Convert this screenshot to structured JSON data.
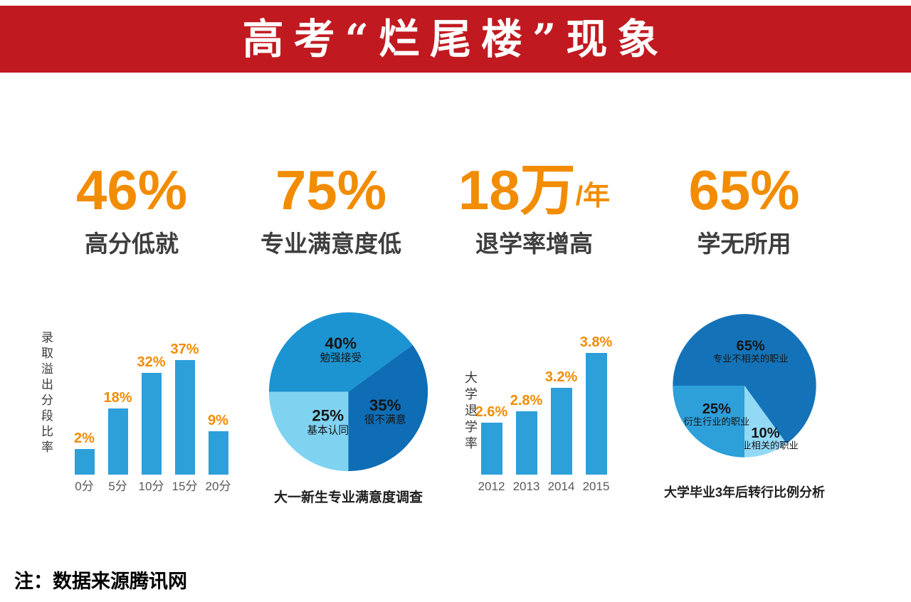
{
  "header": {
    "title": "高考“烂尾楼”现象"
  },
  "colors": {
    "banner_red": "#C11920",
    "accent_orange": "#F28C00",
    "bar_blue": "#2D9FD9",
    "pie_dark_blue": "#0E6DB5",
    "pie_mid_blue": "#1D94D2",
    "pie_light_blue": "#7FD3F1",
    "label_gray": "#3E3E3E"
  },
  "stats": [
    {
      "value": "46%",
      "suffix": "",
      "label": "高分低就"
    },
    {
      "value": "75%",
      "suffix": "",
      "label": "专业满意度低"
    },
    {
      "value": "18万",
      "suffix": "/年",
      "label": "退学率增高"
    },
    {
      "value": "65%",
      "suffix": "",
      "label": "学无所用"
    }
  ],
  "chart_data": [
    {
      "type": "bar",
      "ylabel": "录取溢出分段比率",
      "categories": [
        "0分",
        "5分",
        "10分",
        "15分",
        "20分"
      ],
      "values": [
        2,
        18,
        32,
        37,
        9
      ],
      "value_labels": [
        "2%",
        "18%",
        "32%",
        "37%",
        "9%"
      ],
      "ylim": [
        -8,
        38
      ],
      "grid": false,
      "bar_color": "#2D9FD9",
      "value_label_color": "#F28C00"
    },
    {
      "type": "pie",
      "title": "大一新生专业满意度调查",
      "start_angle": 270,
      "legend": "labels-inside",
      "slices": [
        {
          "name": "勉强接受",
          "value": 40,
          "display": "40%",
          "color": "#1D94D2",
          "label_angle": 350,
          "label_r": 0.55
        },
        {
          "name": "很不满意",
          "value": 35,
          "display": "35%",
          "color": "#0E6DB5",
          "label_r": 0.52
        },
        {
          "name": "基本认同",
          "value": 25,
          "display": "25%",
          "color": "#7FD3F1",
          "label_angle": 215,
          "label_r": 0.45
        }
      ]
    },
    {
      "type": "bar",
      "ylabel": "大学退学率",
      "categories": [
        "2012",
        "2013",
        "2014",
        "2015"
      ],
      "values": [
        2.6,
        2.8,
        3.2,
        3.8
      ],
      "value_labels": [
        "2.6%",
        "2.8%",
        "3.2%",
        "3.8%"
      ],
      "ylim": [
        1.7,
        4.1
      ],
      "grid": false,
      "bar_color": "#2D9FD9",
      "value_label_color": "#F28C00"
    },
    {
      "type": "pie",
      "title": "大学毕业3年后转行比例分析",
      "start_angle": 270,
      "legend": "labels-inside",
      "slices": [
        {
          "name": "专业不相关的职业",
          "value": 65,
          "display": "65%",
          "color": "#1473B8",
          "label_angle": 10,
          "label_r": 0.5
        },
        {
          "name": "专业相关的职业",
          "value": 10,
          "display": "10%",
          "color": "#92D9F5",
          "label_angle": 158,
          "label_r": 0.78
        },
        {
          "name": "衍生行业的职业",
          "value": 25,
          "display": "25%",
          "color": "#2D9FD9",
          "label_angle": 225,
          "label_r": 0.55
        }
      ]
    }
  ],
  "footer": {
    "note": "注：数据来源腾讯网"
  }
}
